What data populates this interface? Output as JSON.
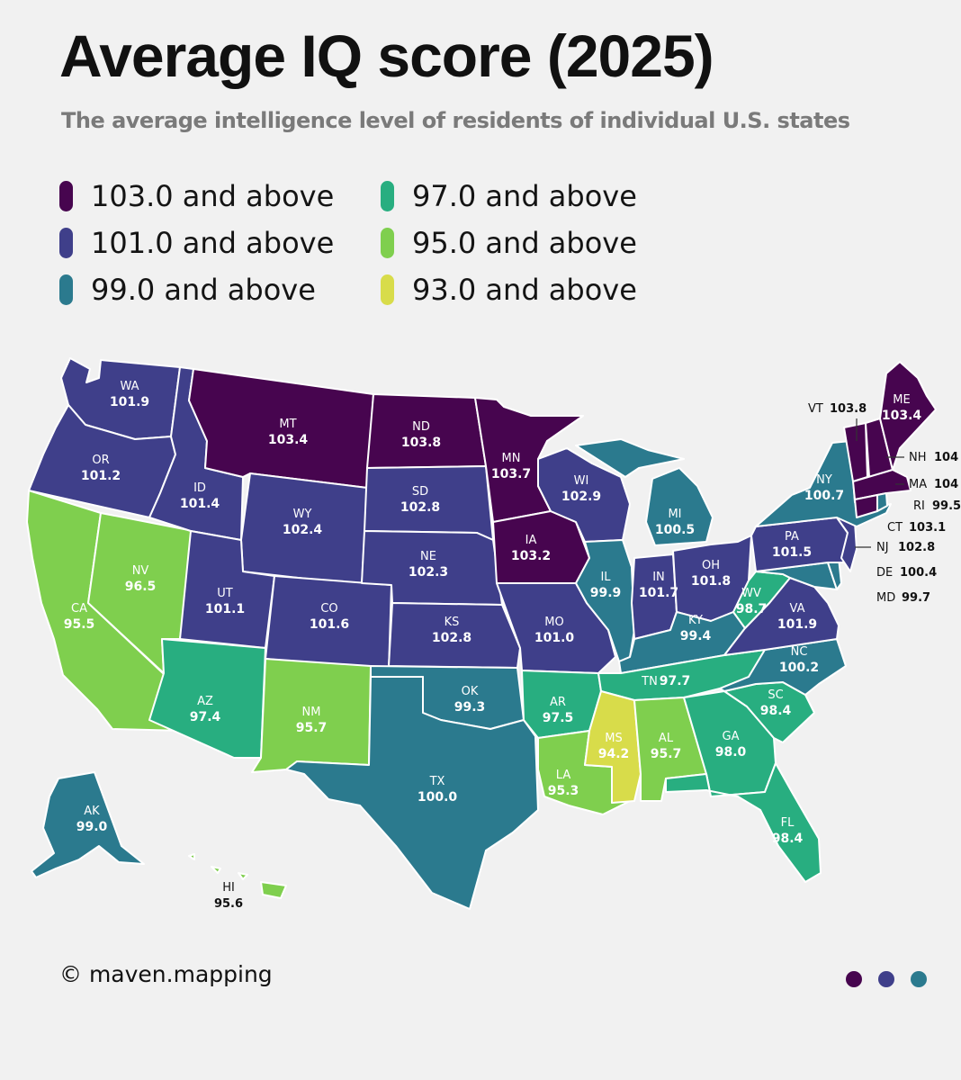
{
  "title": "Average IQ score (2025)",
  "subtitle": "The average intelligence level of residents of individual U.S. states",
  "legend": [
    {
      "label": "103.0 and above",
      "color": "#47054f"
    },
    {
      "label": "101.0 and above",
      "color": "#3f3f8a"
    },
    {
      "label": "99.0 and above",
      "color": "#2b7a8e"
    },
    {
      "label": "97.0 and above",
      "color": "#28ae80"
    },
    {
      "label": "95.0 and above",
      "color": "#7fcf4e"
    },
    {
      "label": "93.0 and above",
      "color": "#d8dc4a"
    }
  ],
  "states": {
    "WA": "101.9",
    "OR": "101.2",
    "CA": "95.5",
    "NV": "96.5",
    "ID": "101.4",
    "MT": "103.4",
    "WY": "102.4",
    "UT": "101.1",
    "AZ": "97.4",
    "CO": "101.6",
    "NM": "95.7",
    "ND": "103.8",
    "SD": "102.8",
    "NE": "102.3",
    "KS": "102.8",
    "OK": "99.3",
    "TX": "100.0",
    "MN": "103.7",
    "IA": "103.2",
    "MO": "101.0",
    "AR": "97.5",
    "LA": "95.3",
    "WI": "102.9",
    "IL": "99.9",
    "MI": "100.5",
    "IN": "101.7",
    "OH": "101.8",
    "KY": "99.4",
    "TN": "97.7",
    "MS": "94.2",
    "AL": "95.7",
    "GA": "98.0",
    "FL": "98.4",
    "SC": "98.4",
    "NC": "100.2",
    "VA": "101.9",
    "WV": "98.7",
    "PA": "101.5",
    "NY": "100.7",
    "ME": "103.4",
    "AK": "99.0",
    "HI": "95.6",
    "VT": "103.8",
    "NH": "104",
    "MA": "104",
    "RI": "99.5",
    "CT": "103.1",
    "NJ": "102.8",
    "DE": "100.4",
    "MD": "99.7"
  },
  "footer": "© maven.mapping",
  "footer_dots": [
    "#47054f",
    "#3f3f8a",
    "#2b7a8e"
  ]
}
